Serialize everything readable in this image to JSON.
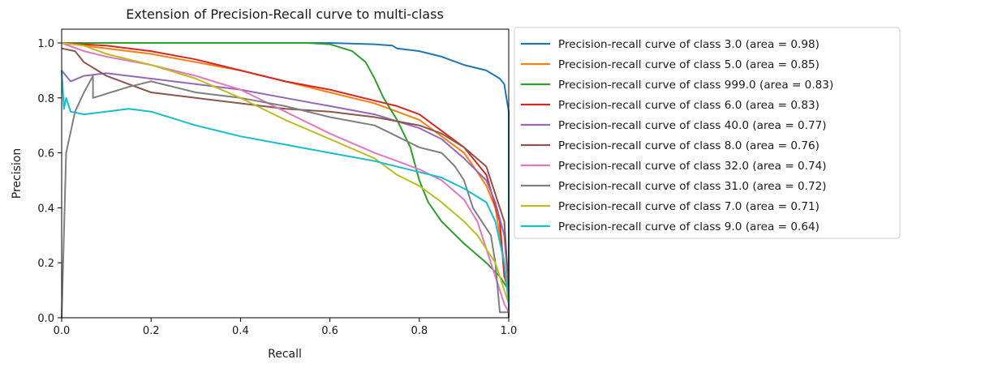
{
  "chart_data": {
    "type": "line",
    "title": "Extension of Precision-Recall curve to multi-class",
    "xlabel": "Recall",
    "ylabel": "Precision",
    "xlim": [
      0.0,
      1.0
    ],
    "ylim": [
      0.0,
      1.05
    ],
    "xticks": [
      "0.0",
      "0.2",
      "0.4",
      "0.6",
      "0.8",
      "1.0"
    ],
    "yticks": [
      "0.0",
      "0.2",
      "0.4",
      "0.6",
      "0.8",
      "1.0"
    ],
    "grid": false,
    "legend_position": "outside-right",
    "series": [
      {
        "name": "Precision-recall curve of class 3.0 (area = 0.98)",
        "color": "#1f77b4",
        "points": [
          [
            0,
            1.0
          ],
          [
            0.2,
            1.0
          ],
          [
            0.4,
            1.0
          ],
          [
            0.6,
            1.0
          ],
          [
            0.7,
            0.995
          ],
          [
            0.74,
            0.99
          ],
          [
            0.75,
            0.98
          ],
          [
            0.8,
            0.97
          ],
          [
            0.85,
            0.95
          ],
          [
            0.9,
            0.92
          ],
          [
            0.95,
            0.9
          ],
          [
            0.97,
            0.88
          ],
          [
            0.98,
            0.87
          ],
          [
            0.99,
            0.85
          ],
          [
            0.995,
            0.8
          ],
          [
            1.0,
            0.75
          ],
          [
            1.0,
            0.0
          ]
        ]
      },
      {
        "name": "Precision-recall curve of class 5.0 (area = 0.85)",
        "color": "#ff7f0e",
        "points": [
          [
            0,
            1.0
          ],
          [
            0.05,
            0.99
          ],
          [
            0.1,
            0.98
          ],
          [
            0.2,
            0.96
          ],
          [
            0.3,
            0.93
          ],
          [
            0.4,
            0.9
          ],
          [
            0.5,
            0.86
          ],
          [
            0.6,
            0.82
          ],
          [
            0.65,
            0.8
          ],
          [
            0.7,
            0.78
          ],
          [
            0.75,
            0.75
          ],
          [
            0.8,
            0.72
          ],
          [
            0.85,
            0.66
          ],
          [
            0.9,
            0.6
          ],
          [
            0.93,
            0.53
          ],
          [
            0.95,
            0.48
          ],
          [
            0.97,
            0.4
          ],
          [
            0.98,
            0.3
          ],
          [
            0.99,
            0.2
          ],
          [
            1.0,
            0.05
          ]
        ]
      },
      {
        "name": "Precision-recall curve of class 999.0 (area = 0.83)",
        "color": "#2ca02c",
        "points": [
          [
            0,
            1.0
          ],
          [
            0.3,
            1.0
          ],
          [
            0.55,
            1.0
          ],
          [
            0.6,
            0.995
          ],
          [
            0.65,
            0.97
          ],
          [
            0.68,
            0.93
          ],
          [
            0.7,
            0.87
          ],
          [
            0.72,
            0.8
          ],
          [
            0.75,
            0.72
          ],
          [
            0.78,
            0.62
          ],
          [
            0.8,
            0.5
          ],
          [
            0.82,
            0.42
          ],
          [
            0.85,
            0.35
          ],
          [
            0.9,
            0.27
          ],
          [
            0.95,
            0.2
          ],
          [
            0.98,
            0.15
          ],
          [
            1.0,
            0.1
          ]
        ]
      },
      {
        "name": "Precision-recall curve of class 6.0 (area = 0.83)",
        "color": "#d62728",
        "points": [
          [
            0,
            1.0
          ],
          [
            0.1,
            0.99
          ],
          [
            0.2,
            0.97
          ],
          [
            0.3,
            0.94
          ],
          [
            0.4,
            0.9
          ],
          [
            0.5,
            0.86
          ],
          [
            0.6,
            0.83
          ],
          [
            0.7,
            0.79
          ],
          [
            0.75,
            0.77
          ],
          [
            0.8,
            0.74
          ],
          [
            0.85,
            0.68
          ],
          [
            0.9,
            0.62
          ],
          [
            0.95,
            0.52
          ],
          [
            0.98,
            0.35
          ],
          [
            0.99,
            0.15
          ],
          [
            1.0,
            0.1
          ]
        ]
      },
      {
        "name": "Precision-recall curve of class 40.0 (area = 0.77)",
        "color": "#9467bd",
        "points": [
          [
            0,
            0.9
          ],
          [
            0.02,
            0.86
          ],
          [
            0.05,
            0.88
          ],
          [
            0.1,
            0.89
          ],
          [
            0.2,
            0.87
          ],
          [
            0.3,
            0.85
          ],
          [
            0.4,
            0.83
          ],
          [
            0.5,
            0.8
          ],
          [
            0.6,
            0.77
          ],
          [
            0.7,
            0.74
          ],
          [
            0.8,
            0.69
          ],
          [
            0.85,
            0.65
          ],
          [
            0.9,
            0.58
          ],
          [
            0.95,
            0.5
          ],
          [
            0.97,
            0.42
          ],
          [
            0.99,
            0.3
          ],
          [
            1.0,
            0.1
          ]
        ]
      },
      {
        "name": "Precision-recall curve of class 8.0 (area = 0.76)",
        "color": "#8c564b",
        "points": [
          [
            0,
            0.98
          ],
          [
            0.03,
            0.97
          ],
          [
            0.05,
            0.93
          ],
          [
            0.1,
            0.88
          ],
          [
            0.15,
            0.85
          ],
          [
            0.2,
            0.82
          ],
          [
            0.3,
            0.8
          ],
          [
            0.4,
            0.78
          ],
          [
            0.5,
            0.76
          ],
          [
            0.6,
            0.75
          ],
          [
            0.7,
            0.73
          ],
          [
            0.8,
            0.7
          ],
          [
            0.85,
            0.67
          ],
          [
            0.9,
            0.62
          ],
          [
            0.95,
            0.55
          ],
          [
            0.97,
            0.45
          ],
          [
            0.99,
            0.35
          ],
          [
            1.0,
            0.1
          ]
        ]
      },
      {
        "name": "Precision-recall curve of class 32.0 (area = 0.74)",
        "color": "#e377c2",
        "points": [
          [
            0,
            1.0
          ],
          [
            0.05,
            0.97
          ],
          [
            0.1,
            0.95
          ],
          [
            0.2,
            0.92
          ],
          [
            0.3,
            0.88
          ],
          [
            0.4,
            0.83
          ],
          [
            0.5,
            0.75
          ],
          [
            0.6,
            0.67
          ],
          [
            0.7,
            0.6
          ],
          [
            0.75,
            0.57
          ],
          [
            0.8,
            0.54
          ],
          [
            0.85,
            0.5
          ],
          [
            0.9,
            0.43
          ],
          [
            0.93,
            0.35
          ],
          [
            0.95,
            0.25
          ],
          [
            0.97,
            0.15
          ],
          [
            0.99,
            0.05
          ],
          [
            1.0,
            0.02
          ]
        ]
      },
      {
        "name": "Precision-recall curve of class 31.0 (area = 0.72)",
        "color": "#7f7f7f",
        "points": [
          [
            0,
            0.0
          ],
          [
            0.01,
            0.6
          ],
          [
            0.03,
            0.75
          ],
          [
            0.05,
            0.82
          ],
          [
            0.07,
            0.88
          ],
          [
            0.07,
            0.8
          ],
          [
            0.15,
            0.84
          ],
          [
            0.2,
            0.86
          ],
          [
            0.25,
            0.84
          ],
          [
            0.3,
            0.82
          ],
          [
            0.4,
            0.8
          ],
          [
            0.5,
            0.77
          ],
          [
            0.6,
            0.73
          ],
          [
            0.7,
            0.7
          ],
          [
            0.75,
            0.66
          ],
          [
            0.8,
            0.62
          ],
          [
            0.85,
            0.6
          ],
          [
            0.88,
            0.55
          ],
          [
            0.9,
            0.5
          ],
          [
            0.92,
            0.4
          ],
          [
            0.94,
            0.35
          ],
          [
            0.96,
            0.3
          ],
          [
            0.97,
            0.2
          ],
          [
            0.98,
            0.02
          ],
          [
            1.0,
            0.02
          ]
        ]
      },
      {
        "name": "Precision-recall curve of class 7.0 (area = 0.71)",
        "color": "#bcbd22",
        "points": [
          [
            0,
            1.0
          ],
          [
            0.05,
            0.99
          ],
          [
            0.1,
            0.96
          ],
          [
            0.2,
            0.92
          ],
          [
            0.3,
            0.87
          ],
          [
            0.4,
            0.8
          ],
          [
            0.5,
            0.72
          ],
          [
            0.6,
            0.65
          ],
          [
            0.7,
            0.58
          ],
          [
            0.75,
            0.52
          ],
          [
            0.8,
            0.48
          ],
          [
            0.85,
            0.42
          ],
          [
            0.9,
            0.35
          ],
          [
            0.93,
            0.3
          ],
          [
            0.95,
            0.25
          ],
          [
            0.97,
            0.2
          ],
          [
            0.99,
            0.1
          ],
          [
            1.0,
            0.05
          ]
        ]
      },
      {
        "name": "Precision-recall curve of class 9.0 (area = 0.64)",
        "color": "#17becf",
        "points": [
          [
            0,
            0.9
          ],
          [
            0.005,
            0.76
          ],
          [
            0.01,
            0.8
          ],
          [
            0.02,
            0.75
          ],
          [
            0.05,
            0.74
          ],
          [
            0.1,
            0.75
          ],
          [
            0.15,
            0.76
          ],
          [
            0.2,
            0.75
          ],
          [
            0.3,
            0.7
          ],
          [
            0.4,
            0.66
          ],
          [
            0.5,
            0.63
          ],
          [
            0.6,
            0.6
          ],
          [
            0.7,
            0.57
          ],
          [
            0.8,
            0.53
          ],
          [
            0.85,
            0.51
          ],
          [
            0.9,
            0.47
          ],
          [
            0.95,
            0.42
          ],
          [
            0.97,
            0.35
          ],
          [
            0.99,
            0.2
          ],
          [
            1.0,
            0.05
          ]
        ]
      }
    ]
  }
}
